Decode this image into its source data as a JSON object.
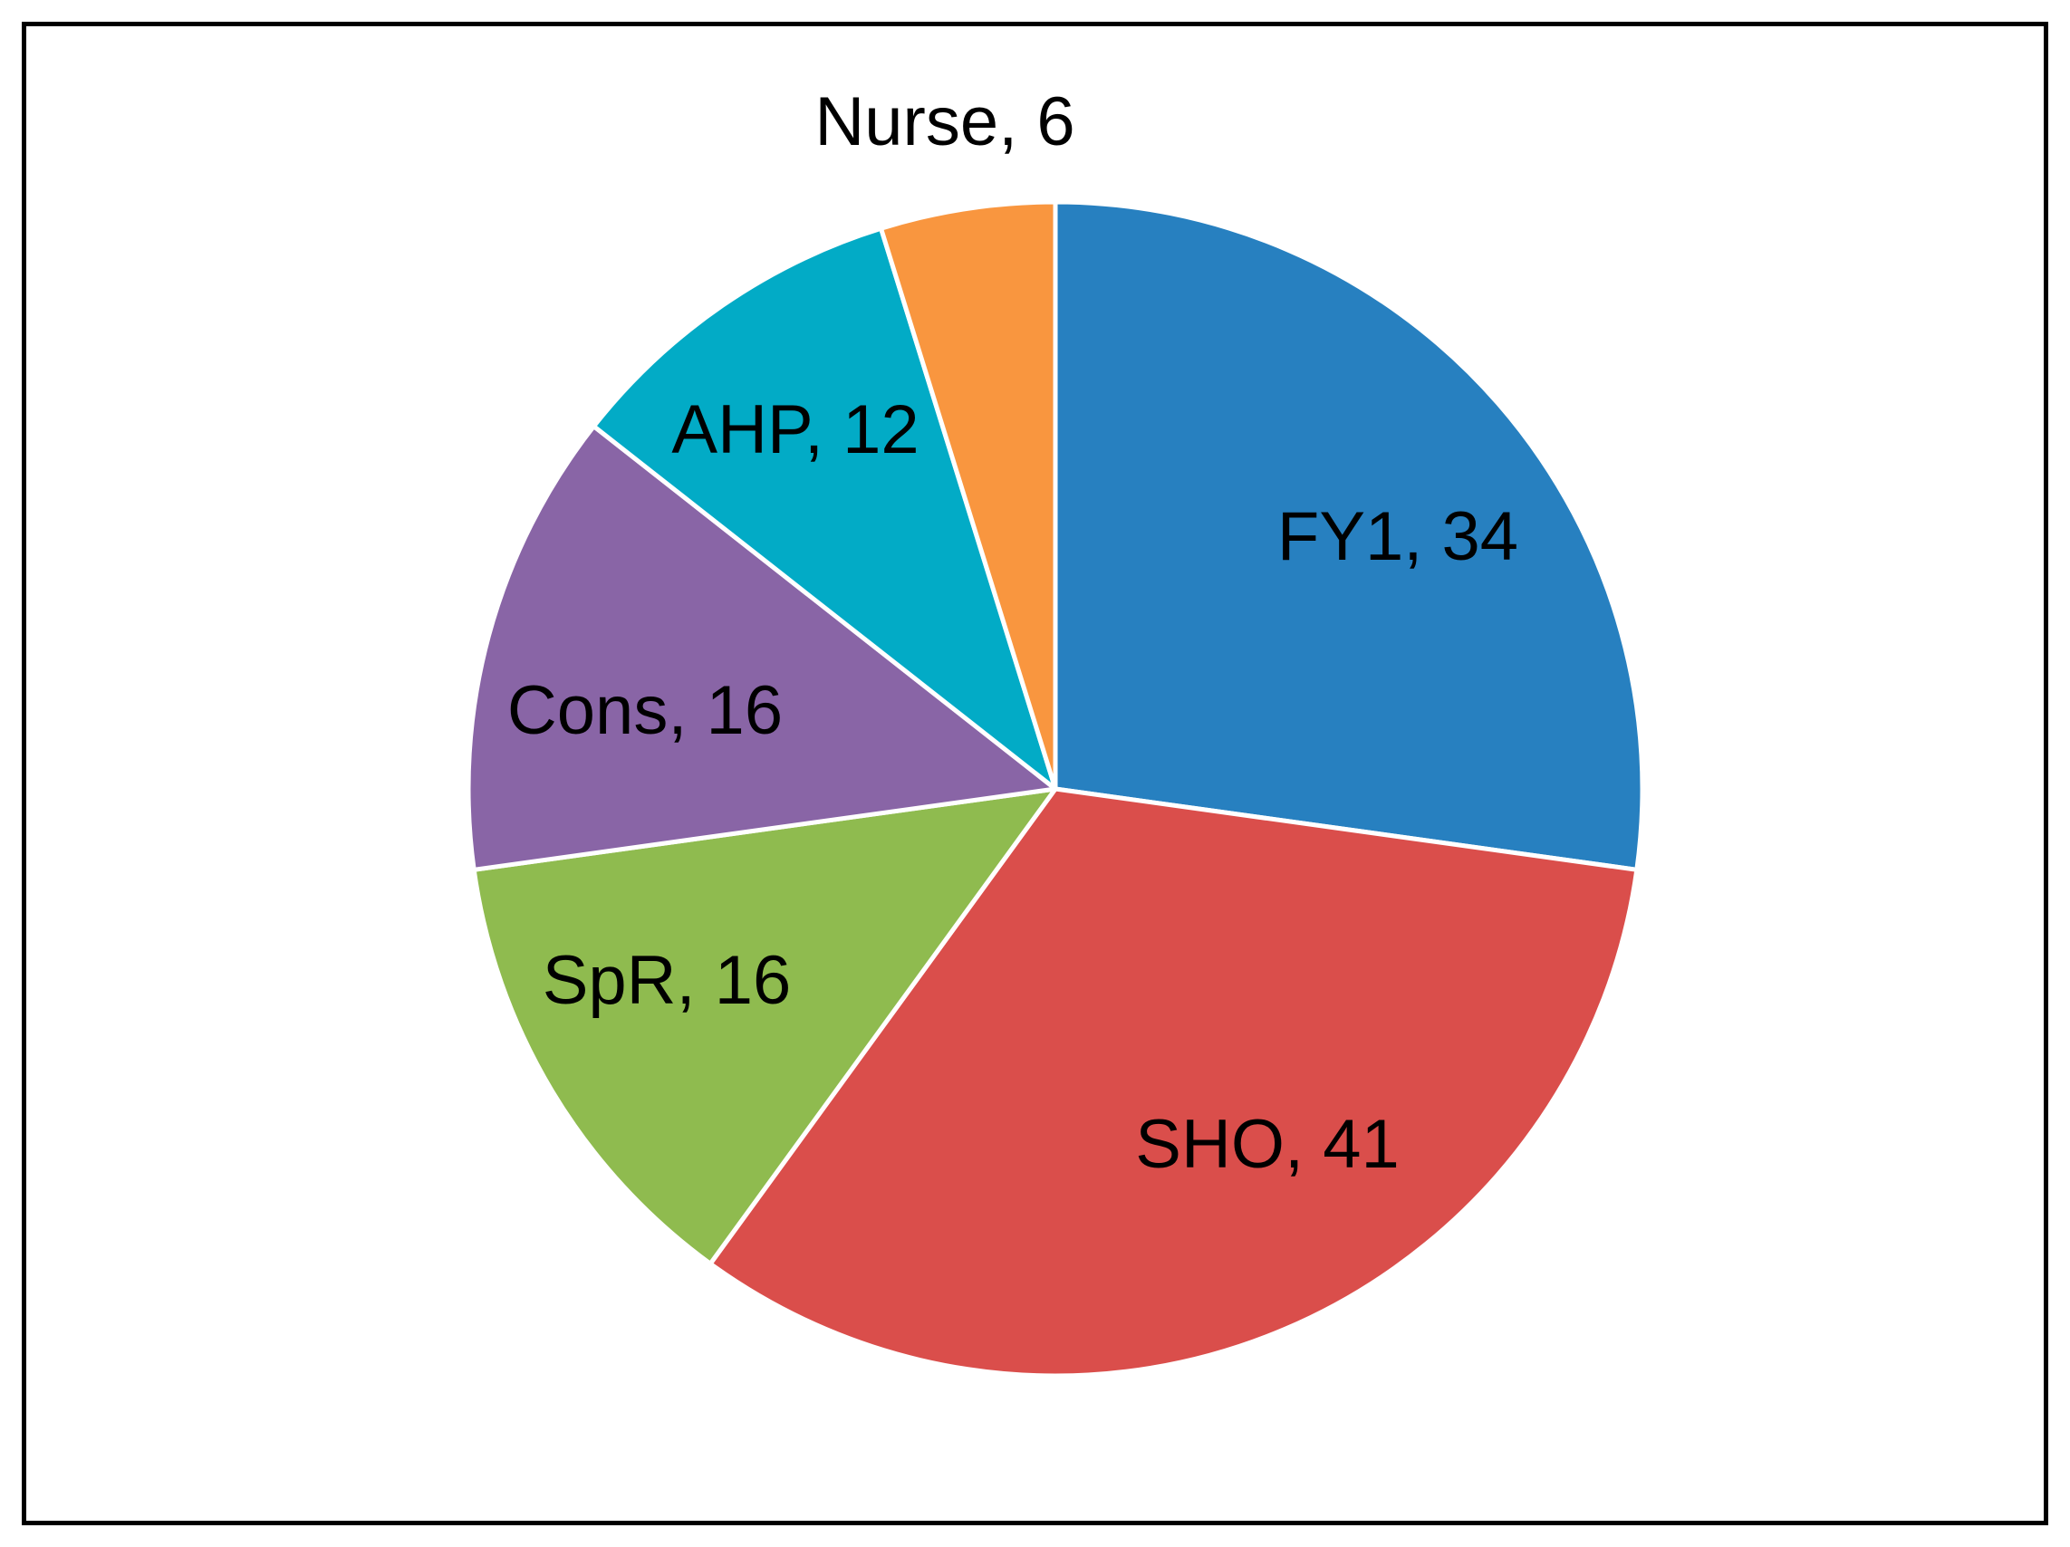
{
  "chart_data": {
    "type": "pie",
    "title": "",
    "start_angle_deg": 0,
    "direction": "clockwise",
    "legend": "none",
    "label_format": "{category}, {value}",
    "slices": [
      {
        "category": "FY1",
        "value": 34,
        "color": "#2780C0"
      },
      {
        "category": "SHO",
        "value": 41,
        "color": "#DA4E4B"
      },
      {
        "category": "SpR",
        "value": 16,
        "color": "#8FBB4F"
      },
      {
        "category": "Cons",
        "value": 16,
        "color": "#8965A6"
      },
      {
        "category": "AHP",
        "value": 12,
        "color": "#02ABC6"
      },
      {
        "category": "Nurse",
        "value": 6,
        "color": "#F9963F"
      }
    ]
  }
}
